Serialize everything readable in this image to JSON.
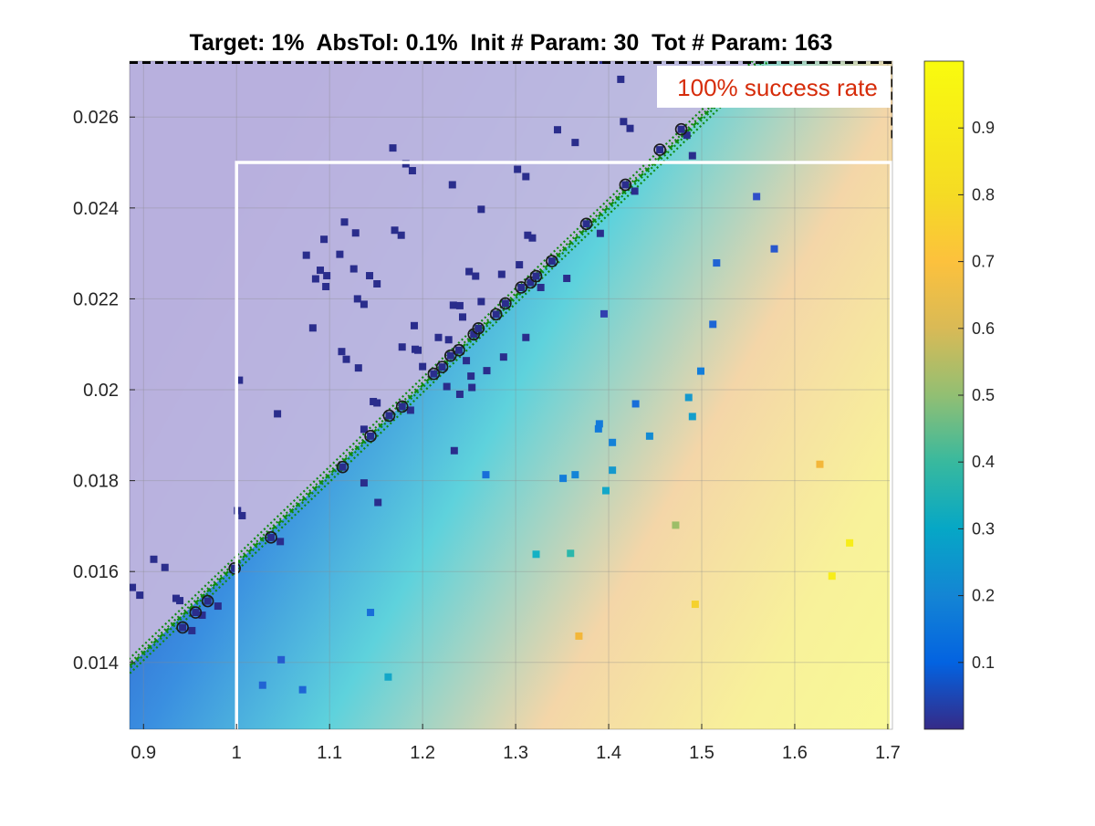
{
  "chart_data": {
    "type": "scatter",
    "title": "Target: 1%  AbsTol: 0.1%  Init # Param: 30  Tot # Param: 163",
    "annotation": "100% success rate",
    "xlabel": "",
    "ylabel": "",
    "xlim": [
      0.885,
      1.705
    ],
    "ylim": [
      0.01253,
      0.02723
    ],
    "xticks": [
      0.9,
      1,
      1.1,
      1.2,
      1.3,
      1.4,
      1.5,
      1.6,
      1.7
    ],
    "xtick_labels": [
      "0.9",
      "1",
      "1.1",
      "1.2",
      "1.3",
      "1.4",
      "1.5",
      "1.6",
      "1.7"
    ],
    "yticks": [
      0.014,
      0.016,
      0.018,
      0.02,
      0.022,
      0.024,
      0.026
    ],
    "ytick_labels": [
      "0.014",
      "0.016",
      "0.018",
      "0.02",
      "0.022",
      "0.024",
      "0.026"
    ],
    "grid": true,
    "colormap": "parula",
    "colorbar": {
      "range": [
        0,
        1
      ],
      "ticks": [
        0.1,
        0.2,
        0.3,
        0.4,
        0.5,
        0.6,
        0.7,
        0.8,
        0.9
      ],
      "tick_labels": [
        "0.1",
        "0.2",
        "0.3",
        "0.4",
        "0.5",
        "0.6",
        "0.7",
        "0.8",
        "0.9"
      ]
    },
    "background_field": {
      "type": "linear-gradient",
      "min": 0,
      "max": 1,
      "overlay_color": "#c4b8df"
    },
    "feasible_region_line": {
      "x": [
        0.86,
        1.58
      ],
      "y": [
        0.01343,
        0.02756
      ],
      "color": "#118a11",
      "style": "dotted-band"
    },
    "target_region_box": {
      "x": [
        1.0,
        1.705
      ],
      "y": [
        0.01253,
        0.025
      ],
      "color": "#ffffff"
    },
    "initial_region_box": {
      "x": [
        0.885,
        1.705
      ],
      "y": [
        0.0255,
        0.02723
      ],
      "color": "#000000",
      "style": "dashed"
    },
    "boundary_points_circled": {
      "x": [
        0.942,
        0.956,
        0.969,
        0.998,
        1.037,
        1.114,
        1.144,
        1.164,
        1.178,
        1.212,
        1.221,
        1.23,
        1.239,
        1.255,
        1.26,
        1.279,
        1.289,
        1.306,
        1.316,
        1.322,
        1.339,
        1.376,
        1.418,
        1.455,
        1.478
      ],
      "y": [
        0.01477,
        0.0151,
        0.01535,
        0.01607,
        0.01675,
        0.0183,
        0.01898,
        0.01943,
        0.01963,
        0.02035,
        0.0205,
        0.02075,
        0.02087,
        0.02122,
        0.02135,
        0.02166,
        0.0219,
        0.02225,
        0.02236,
        0.0225,
        0.02283,
        0.02365,
        0.02451,
        0.02528,
        0.02573
      ]
    },
    "samples": [
      {
        "x": 0.888,
        "y": 0.01565,
        "v": 0.02
      },
      {
        "x": 0.896,
        "y": 0.01548,
        "v": 0.02
      },
      {
        "x": 0.911,
        "y": 0.01627,
        "v": 0.02
      },
      {
        "x": 0.923,
        "y": 0.01609,
        "v": 0.02
      },
      {
        "x": 0.935,
        "y": 0.01541,
        "v": 0.02
      },
      {
        "x": 0.939,
        "y": 0.01536,
        "v": 0.02
      },
      {
        "x": 0.952,
        "y": 0.0147,
        "v": 0.02
      },
      {
        "x": 0.963,
        "y": 0.01504,
        "v": 0.02
      },
      {
        "x": 0.98,
        "y": 0.01524,
        "v": 0.02
      },
      {
        "x": 1.003,
        "y": 0.02021,
        "v": 0.02
      },
      {
        "x": 1.001,
        "y": 0.01734,
        "v": 0.02
      },
      {
        "x": 1.006,
        "y": 0.01723,
        "v": 0.02
      },
      {
        "x": 1.044,
        "y": 0.01947,
        "v": 0.02
      },
      {
        "x": 1.047,
        "y": 0.01666,
        "v": 0.02
      },
      {
        "x": 1.075,
        "y": 0.02296,
        "v": 0.02
      },
      {
        "x": 1.082,
        "y": 0.02136,
        "v": 0.02
      },
      {
        "x": 1.085,
        "y": 0.02244,
        "v": 0.02
      },
      {
        "x": 1.09,
        "y": 0.02263,
        "v": 0.02
      },
      {
        "x": 1.094,
        "y": 0.02331,
        "v": 0.02
      },
      {
        "x": 1.096,
        "y": 0.02227,
        "v": 0.02
      },
      {
        "x": 1.097,
        "y": 0.02251,
        "v": 0.02
      },
      {
        "x": 1.111,
        "y": 0.02298,
        "v": 0.02
      },
      {
        "x": 1.113,
        "y": 0.02084,
        "v": 0.02
      },
      {
        "x": 1.116,
        "y": 0.02369,
        "v": 0.02
      },
      {
        "x": 1.118,
        "y": 0.02067,
        "v": 0.02
      },
      {
        "x": 1.126,
        "y": 0.02266,
        "v": 0.02
      },
      {
        "x": 1.128,
        "y": 0.02345,
        "v": 0.02
      },
      {
        "x": 1.131,
        "y": 0.02048,
        "v": 0.02
      },
      {
        "x": 1.13,
        "y": 0.022,
        "v": 0.02
      },
      {
        "x": 1.137,
        "y": 0.02188,
        "v": 0.02
      },
      {
        "x": 1.137,
        "y": 0.01913,
        "v": 0.02
      },
      {
        "x": 1.137,
        "y": 0.01795,
        "v": 0.02
      },
      {
        "x": 1.143,
        "y": 0.02251,
        "v": 0.02
      },
      {
        "x": 1.147,
        "y": 0.01974,
        "v": 0.02
      },
      {
        "x": 1.151,
        "y": 0.01971,
        "v": 0.02
      },
      {
        "x": 1.151,
        "y": 0.02233,
        "v": 0.02
      },
      {
        "x": 1.152,
        "y": 0.01752,
        "v": 0.02
      },
      {
        "x": 1.168,
        "y": 0.02532,
        "v": 0.02
      },
      {
        "x": 1.17,
        "y": 0.02351,
        "v": 0.02
      },
      {
        "x": 1.177,
        "y": 0.0234,
        "v": 0.02
      },
      {
        "x": 1.178,
        "y": 0.02094,
        "v": 0.02
      },
      {
        "x": 1.182,
        "y": 0.02497,
        "v": 0.02
      },
      {
        "x": 1.187,
        "y": 0.01955,
        "v": 0.02
      },
      {
        "x": 1.189,
        "y": 0.02482,
        "v": 0.02
      },
      {
        "x": 1.191,
        "y": 0.02141,
        "v": 0.02
      },
      {
        "x": 1.192,
        "y": 0.02089,
        "v": 0.02
      },
      {
        "x": 1.195,
        "y": 0.02087,
        "v": 0.02
      },
      {
        "x": 1.2,
        "y": 0.02051,
        "v": 0.02
      },
      {
        "x": 1.217,
        "y": 0.02115,
        "v": 0.02
      },
      {
        "x": 1.226,
        "y": 0.02007,
        "v": 0.02
      },
      {
        "x": 1.228,
        "y": 0.0211,
        "v": 0.02
      },
      {
        "x": 1.232,
        "y": 0.02451,
        "v": 0.02
      },
      {
        "x": 1.233,
        "y": 0.02186,
        "v": 0.02
      },
      {
        "x": 1.234,
        "y": 0.01866,
        "v": 0.02
      },
      {
        "x": 1.24,
        "y": 0.0199,
        "v": 0.02
      },
      {
        "x": 1.24,
        "y": 0.02185,
        "v": 0.02
      },
      {
        "x": 1.243,
        "y": 0.0216,
        "v": 0.02
      },
      {
        "x": 1.247,
        "y": 0.02064,
        "v": 0.02
      },
      {
        "x": 1.25,
        "y": 0.0226,
        "v": 0.02
      },
      {
        "x": 1.252,
        "y": 0.0203,
        "v": 0.02
      },
      {
        "x": 1.253,
        "y": 0.02005,
        "v": 0.02
      },
      {
        "x": 1.257,
        "y": 0.0225,
        "v": 0.02
      },
      {
        "x": 1.263,
        "y": 0.02397,
        "v": 0.02
      },
      {
        "x": 1.263,
        "y": 0.02194,
        "v": 0.02
      },
      {
        "x": 1.269,
        "y": 0.02042,
        "v": 0.02
      },
      {
        "x": 1.285,
        "y": 0.02254,
        "v": 0.02
      },
      {
        "x": 1.287,
        "y": 0.02072,
        "v": 0.02
      },
      {
        "x": 1.302,
        "y": 0.02485,
        "v": 0.02
      },
      {
        "x": 1.304,
        "y": 0.02275,
        "v": 0.02
      },
      {
        "x": 1.311,
        "y": 0.02115,
        "v": 0.02
      },
      {
        "x": 1.311,
        "y": 0.02469,
        "v": 0.02
      },
      {
        "x": 1.313,
        "y": 0.0234,
        "v": 0.02
      },
      {
        "x": 1.318,
        "y": 0.02334,
        "v": 0.02
      },
      {
        "x": 1.327,
        "y": 0.02225,
        "v": 0.02
      },
      {
        "x": 1.345,
        "y": 0.02572,
        "v": 0.02
      },
      {
        "x": 1.355,
        "y": 0.02245,
        "v": 0.02
      },
      {
        "x": 1.364,
        "y": 0.02544,
        "v": 0.02
      },
      {
        "x": 1.391,
        "y": 0.02344,
        "v": 0.02
      },
      {
        "x": 1.394,
        "y": 0.02725,
        "v": 0.02
      },
      {
        "x": 1.413,
        "y": 0.02683,
        "v": 0.02
      },
      {
        "x": 1.416,
        "y": 0.0259,
        "v": 0.02
      },
      {
        "x": 1.423,
        "y": 0.02575,
        "v": 0.02
      },
      {
        "x": 1.428,
        "y": 0.02437,
        "v": 0.02
      },
      {
        "x": 1.49,
        "y": 0.02515,
        "v": 0.02
      },
      {
        "x": 1.484,
        "y": 0.0256,
        "v": 0.02
      },
      {
        "x": 1.395,
        "y": 0.02167,
        "v": 0.06
      },
      {
        "x": 1.559,
        "y": 0.02425,
        "v": 0.1
      },
      {
        "x": 1.578,
        "y": 0.0231,
        "v": 0.12
      },
      {
        "x": 1.516,
        "y": 0.02279,
        "v": 0.15
      },
      {
        "x": 1.512,
        "y": 0.02144,
        "v": 0.16
      },
      {
        "x": 1.499,
        "y": 0.02041,
        "v": 0.22
      },
      {
        "x": 1.429,
        "y": 0.01969,
        "v": 0.18
      },
      {
        "x": 1.486,
        "y": 0.01983,
        "v": 0.3
      },
      {
        "x": 1.49,
        "y": 0.01941,
        "v": 0.32
      },
      {
        "x": 1.389,
        "y": 0.01914,
        "v": 0.21
      },
      {
        "x": 1.39,
        "y": 0.01925,
        "v": 0.21
      },
      {
        "x": 1.444,
        "y": 0.01898,
        "v": 0.26
      },
      {
        "x": 1.404,
        "y": 0.01884,
        "v": 0.23
      },
      {
        "x": 1.268,
        "y": 0.01813,
        "v": 0.18
      },
      {
        "x": 1.351,
        "y": 0.01805,
        "v": 0.22
      },
      {
        "x": 1.364,
        "y": 0.01813,
        "v": 0.24
      },
      {
        "x": 1.404,
        "y": 0.01823,
        "v": 0.3
      },
      {
        "x": 1.397,
        "y": 0.01778,
        "v": 0.36
      },
      {
        "x": 1.627,
        "y": 0.01836,
        "v": 0.8
      },
      {
        "x": 1.472,
        "y": 0.01702,
        "v": 0.62
      },
      {
        "x": 1.659,
        "y": 0.01663,
        "v": 0.96
      },
      {
        "x": 1.322,
        "y": 0.01638,
        "v": 0.4
      },
      {
        "x": 1.359,
        "y": 0.0164,
        "v": 0.46
      },
      {
        "x": 1.64,
        "y": 0.0159,
        "v": 0.96
      },
      {
        "x": 1.493,
        "y": 0.01528,
        "v": 0.88
      },
      {
        "x": 1.144,
        "y": 0.0151,
        "v": 0.18
      },
      {
        "x": 1.368,
        "y": 0.01458,
        "v": 0.8
      },
      {
        "x": 1.048,
        "y": 0.01406,
        "v": 0.13
      },
      {
        "x": 1.163,
        "y": 0.01368,
        "v": 0.36
      },
      {
        "x": 1.028,
        "y": 0.0135,
        "v": 0.15
      },
      {
        "x": 1.071,
        "y": 0.0134,
        "v": 0.16
      }
    ]
  }
}
